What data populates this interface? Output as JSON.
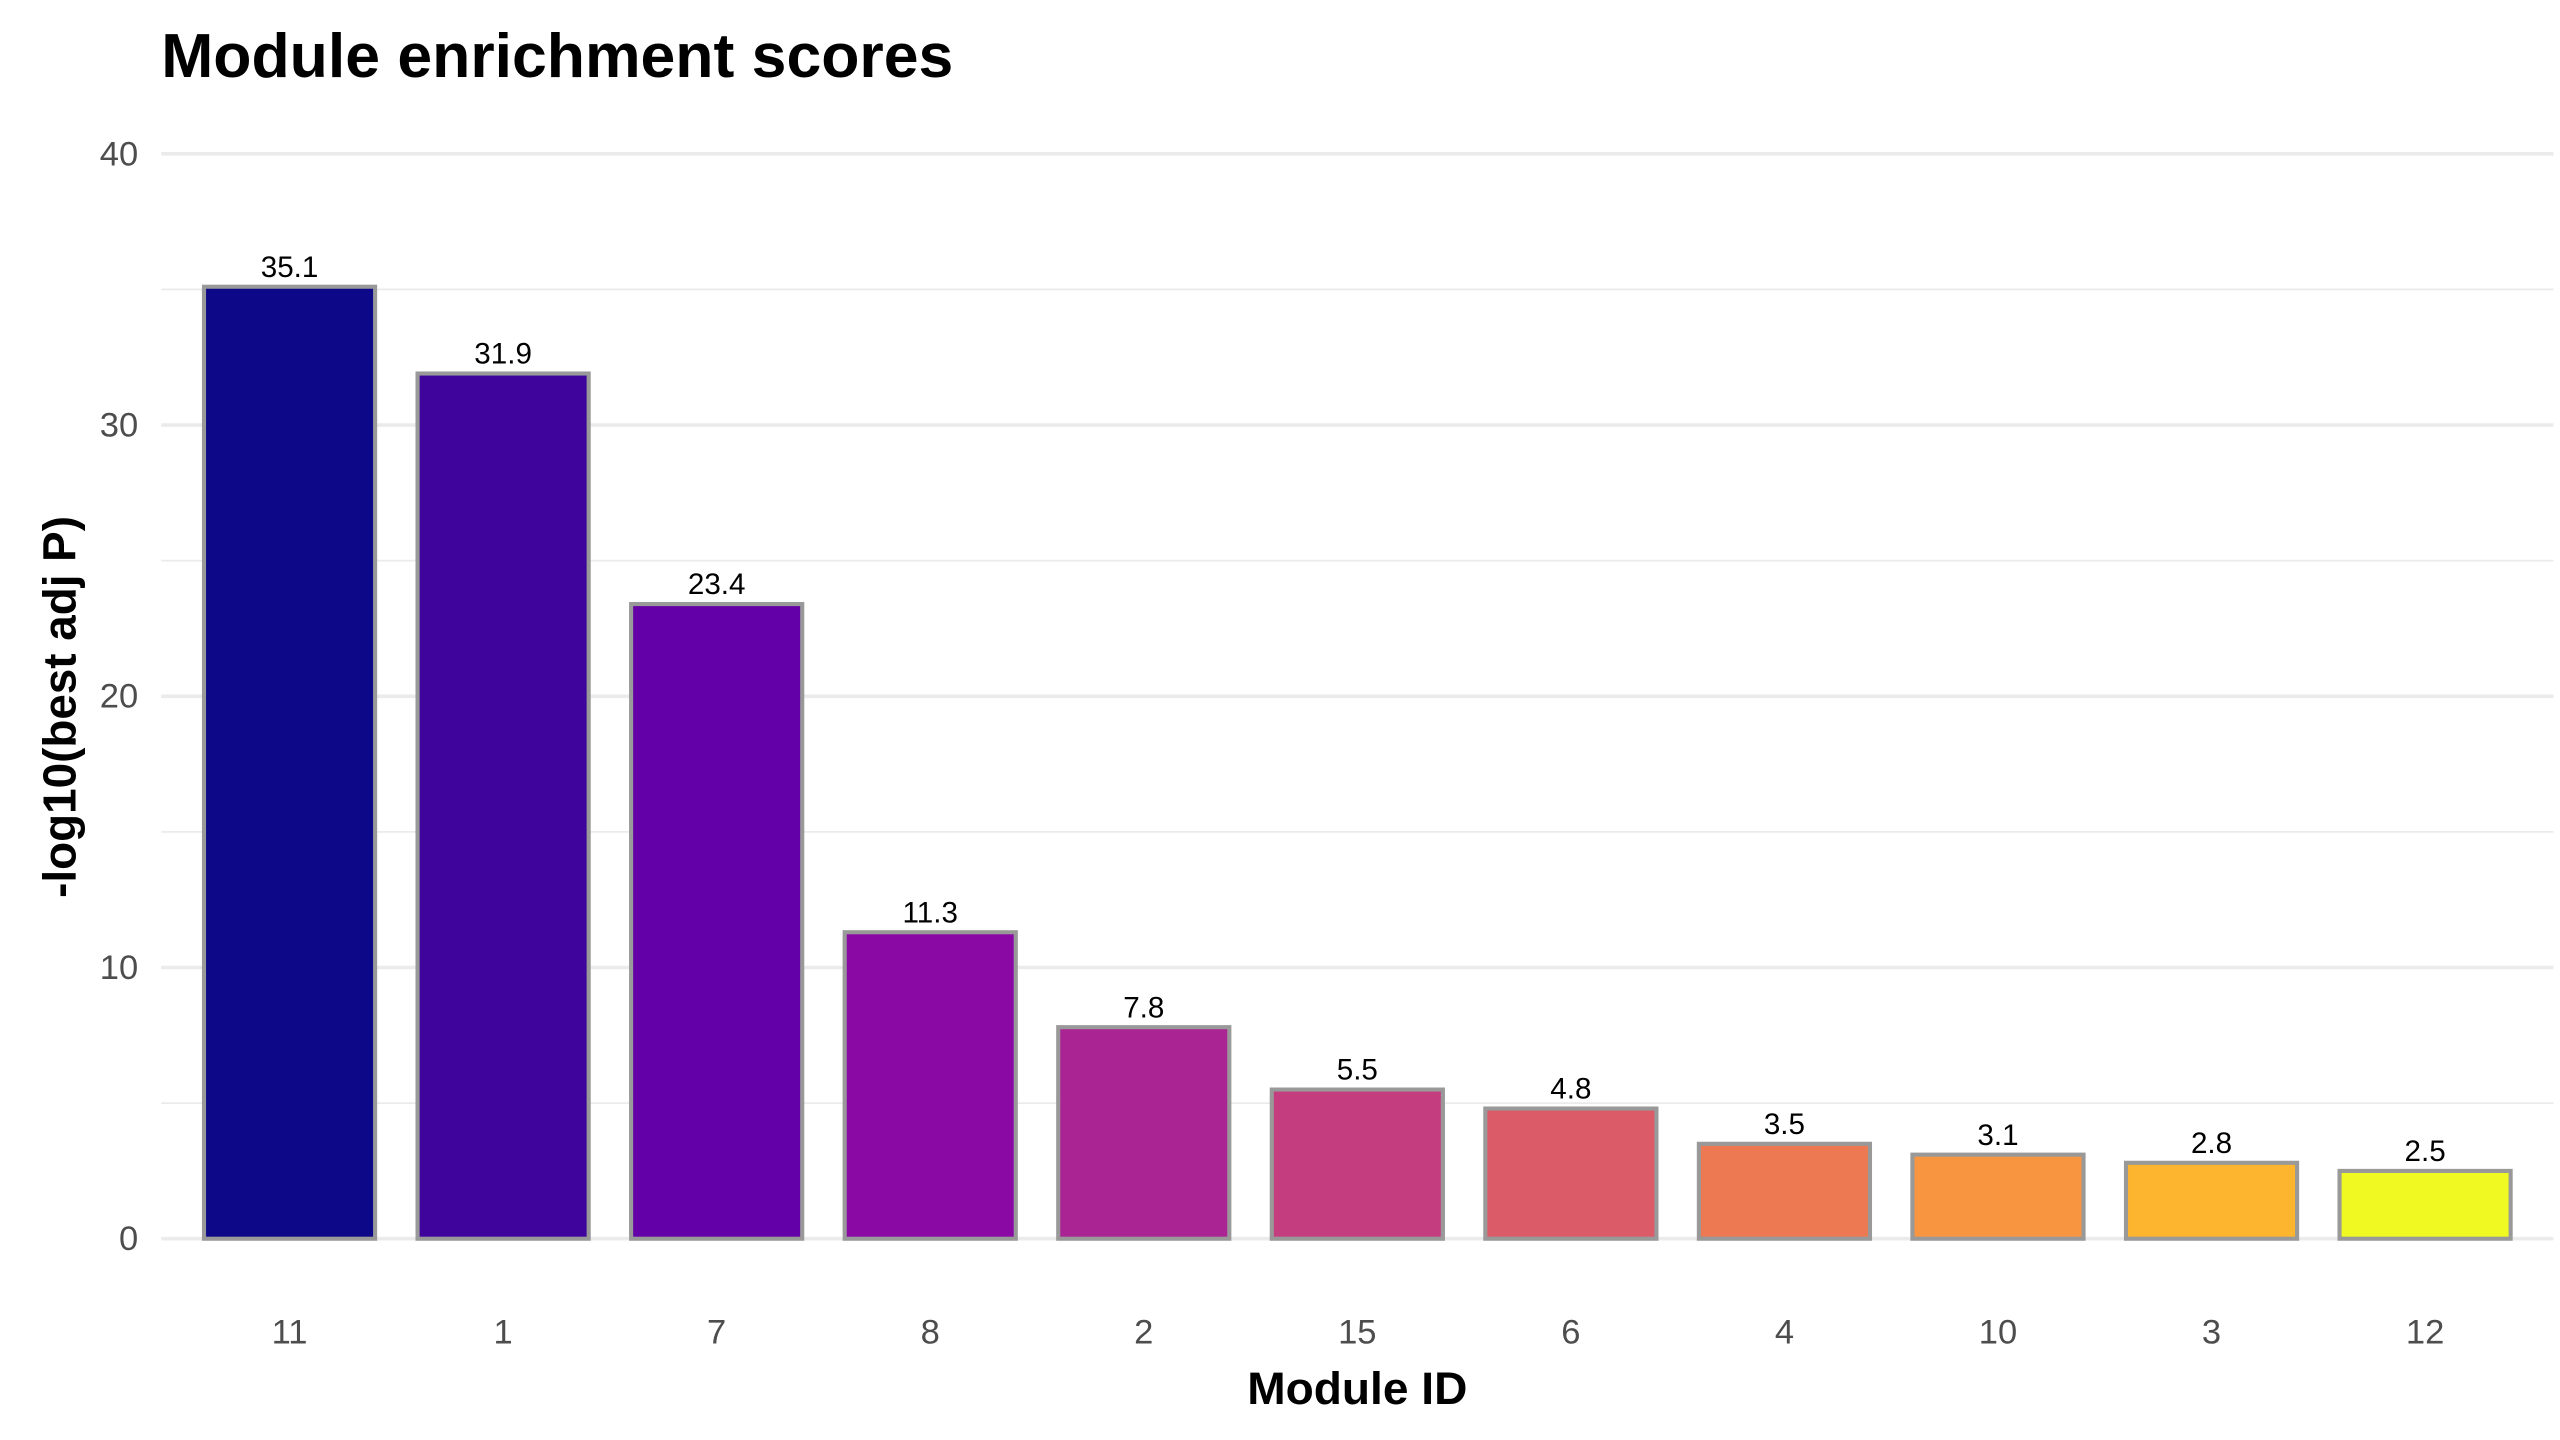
{
  "chart_data": {
    "type": "bar",
    "title": "Module enrichment scores",
    "xlabel": "Module ID",
    "ylabel": "-log10(best adj P)",
    "categories": [
      "11",
      "1",
      "7",
      "8",
      "2",
      "15",
      "6",
      "4",
      "10",
      "3",
      "12"
    ],
    "values": [
      35.1,
      31.9,
      23.4,
      11.3,
      7.8,
      5.5,
      4.8,
      3.5,
      3.1,
      2.8,
      2.5
    ],
    "value_labels": [
      "35.1",
      "31.9",
      "23.4",
      "11.3",
      "7.8",
      "5.5",
      "4.8",
      "3.5",
      "3.1",
      "2.8",
      "2.5"
    ],
    "colors": [
      "#0d0887",
      "#3e049c",
      "#6300a7",
      "#8a09a5",
      "#ab2494",
      "#c43e7f",
      "#db5c68",
      "#ed7953",
      "#f89540",
      "#fdb42f",
      "#f0f921"
    ],
    "bar_edge_color": "#999999",
    "ylim": [
      0,
      40
    ],
    "yticks": [
      0,
      10,
      20,
      30,
      40
    ],
    "ytick_labels": [
      "0",
      "10",
      "20",
      "30",
      "40"
    ],
    "grid": true,
    "legend": "none"
  }
}
